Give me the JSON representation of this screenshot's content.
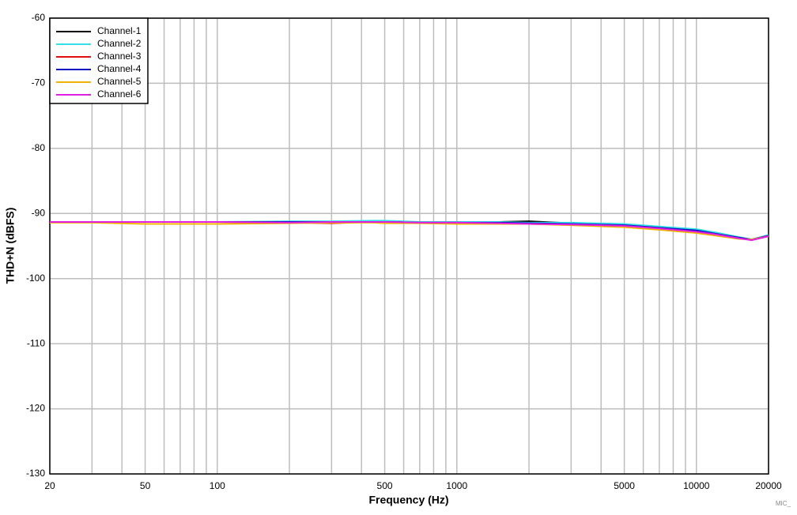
{
  "chart_data": {
    "type": "line",
    "x_label": "Frequency (Hz)",
    "y_label": "THD+N (dBFS)",
    "note": "MIC_",
    "x_scale": "log",
    "grid": true,
    "legend": "top-left",
    "xlim": [
      20,
      20000
    ],
    "ylim": [
      -130,
      -60
    ],
    "xticks": [
      20,
      50,
      100,
      500,
      1000,
      5000,
      10000,
      20000
    ],
    "xgrid": [
      20,
      30,
      40,
      50,
      60,
      70,
      80,
      90,
      100,
      200,
      300,
      400,
      500,
      600,
      700,
      800,
      900,
      1000,
      2000,
      3000,
      4000,
      5000,
      6000,
      7000,
      8000,
      9000,
      10000,
      20000
    ],
    "yticks": [
      -130,
      -120,
      -110,
      -100,
      -90,
      -80,
      -70,
      -60
    ],
    "x": [
      20,
      30,
      50,
      100,
      200,
      300,
      450,
      500,
      700,
      1000,
      1500,
      2000,
      3000,
      5000,
      7000,
      10000,
      12000,
      15000,
      17000,
      20000
    ],
    "series": [
      {
        "name": "Channel-1",
        "color": "#000000",
        "values": [
          -91.3,
          -91.3,
          -91.3,
          -91.3,
          -91.3,
          -91.3,
          -91.3,
          -91.3,
          -91.3,
          -91.3,
          -91.3,
          -91.2,
          -91.5,
          -91.8,
          -92.2,
          -92.6,
          -93.0,
          -93.7,
          -94.0,
          -93.4
        ]
      },
      {
        "name": "Channel-2",
        "color": "#33e0e8",
        "values": [
          -91.3,
          -91.3,
          -91.3,
          -91.3,
          -91.2,
          -91.2,
          -91.1,
          -91.1,
          -91.3,
          -91.3,
          -91.3,
          -91.4,
          -91.4,
          -91.6,
          -92.0,
          -92.4,
          -92.9,
          -93.6,
          -94.0,
          -93.3
        ]
      },
      {
        "name": "Channel-3",
        "color": "#e01010",
        "values": [
          -91.3,
          -91.3,
          -91.3,
          -91.3,
          -91.4,
          -91.5,
          -91.3,
          -91.3,
          -91.4,
          -91.4,
          -91.5,
          -91.6,
          -91.7,
          -91.9,
          -92.3,
          -92.8,
          -93.2,
          -93.8,
          -94.0,
          -93.5
        ]
      },
      {
        "name": "Channel-4",
        "color": "#1010c0",
        "values": [
          -91.3,
          -91.3,
          -91.3,
          -91.3,
          -91.3,
          -91.3,
          -91.3,
          -91.3,
          -91.4,
          -91.4,
          -91.4,
          -91.5,
          -91.6,
          -91.8,
          -92.2,
          -92.6,
          -93.1,
          -93.7,
          -94.0,
          -93.4
        ]
      },
      {
        "name": "Channel-5",
        "color": "#f0b400",
        "values": [
          -91.4,
          -91.4,
          -91.6,
          -91.6,
          -91.5,
          -91.4,
          -91.4,
          -91.5,
          -91.5,
          -91.6,
          -91.6,
          -91.6,
          -91.8,
          -92.1,
          -92.5,
          -93.0,
          -93.4,
          -93.9,
          -94.0,
          -93.5
        ]
      },
      {
        "name": "Channel-6",
        "color": "#e020e0",
        "values": [
          -91.3,
          -91.3,
          -91.3,
          -91.3,
          -91.4,
          -91.3,
          -91.3,
          -91.3,
          -91.4,
          -91.4,
          -91.5,
          -91.6,
          -91.7,
          -91.9,
          -92.3,
          -92.8,
          -93.2,
          -93.8,
          -94.1,
          -93.5
        ]
      }
    ]
  }
}
